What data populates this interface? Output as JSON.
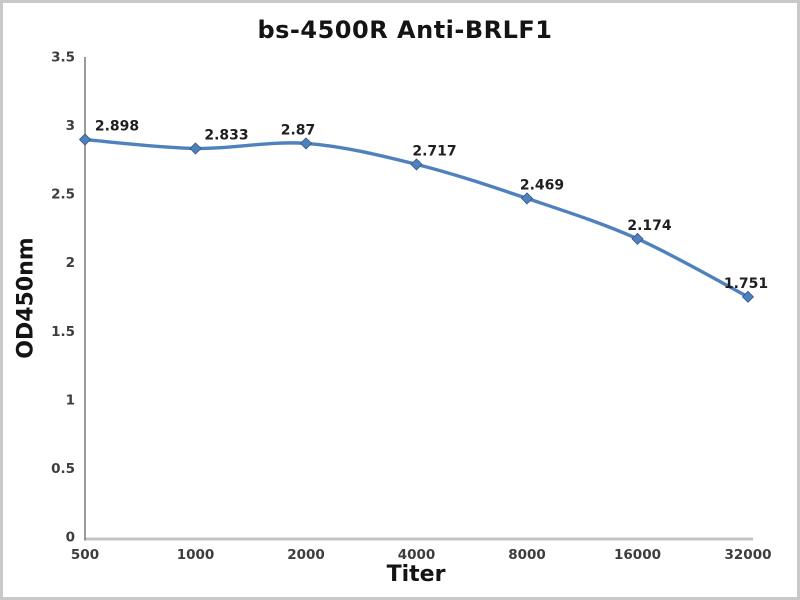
{
  "chart_data": {
    "type": "line",
    "title": "bs-4500R Anti-BRLF1",
    "xlabel": "Titer",
    "ylabel": "OD450nm",
    "categories": [
      "500",
      "1000",
      "2000",
      "4000",
      "8000",
      "16000",
      "32000"
    ],
    "series": [
      {
        "name": "OD450nm",
        "values": [
          2.898,
          2.833,
          2.87,
          2.717,
          2.469,
          2.174,
          1.751
        ],
        "data_labels": [
          "2.898",
          "2.833",
          "2.87",
          "2.717",
          "2.469",
          "2.174",
          "1.751"
        ]
      }
    ],
    "y_ticks": [
      "0",
      "0.5",
      "1",
      "1.5",
      "2",
      "2.5",
      "3",
      "3.5"
    ],
    "ylim": [
      0,
      3.5
    ],
    "grid": false,
    "legend_position": "none",
    "line_smooth": true,
    "marker": "diamond",
    "colors": {
      "line": "#4f81bd",
      "marker_fill": "#4f81bd",
      "marker_edge": "#2f5488",
      "y_axis_line": "#7a7a7a",
      "x_axis_line": "#c3c3c3",
      "title_text": "#141414",
      "tick_text": "#3d3d3d",
      "label_text": "#1f1f1f",
      "frame_border": "#c9c9c9",
      "background": "#ffffff"
    }
  }
}
